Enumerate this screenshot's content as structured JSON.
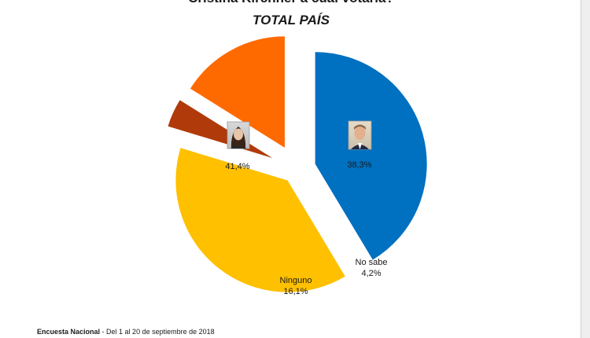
{
  "header": {
    "question": "Cristina Kirchner a cuál votaría?",
    "subtitle": "TOTAL PAÍS"
  },
  "chart_data": {
    "type": "pie",
    "slices": [
      {
        "label": "",
        "value": 41.4,
        "value_label": "41,4%",
        "color": "#0070c0",
        "icon": "woman-portrait-photo"
      },
      {
        "label": "",
        "value": 38.3,
        "value_label": "38,3%",
        "color": "#ffc000",
        "icon": "man-portrait-photo"
      },
      {
        "label": "No sabe",
        "value": 4.2,
        "value_label": "4,2%",
        "color": "#b03a09"
      },
      {
        "label": "Ninguno",
        "value": 16.1,
        "value_label": "16,1%",
        "color": "#ff6a00"
      }
    ]
  },
  "footer": {
    "source": "Encuesta Nacional",
    "dates": "- Del 1 al 20 de septiembre de 2018"
  }
}
